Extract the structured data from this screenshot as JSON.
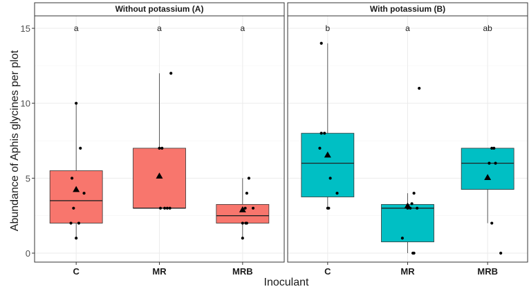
{
  "chart_data": {
    "type": "box",
    "ylabel": "Abundance of Aphis glycines per plot",
    "xlabel": "Inoculant",
    "ylim": [
      -0.5,
      15.8
    ],
    "yticks": [
      0,
      5,
      10,
      15
    ],
    "categories": [
      "C",
      "MR",
      "MRB"
    ],
    "grid": true,
    "legend": "none",
    "panels": [
      {
        "title": "Without potassium (A)",
        "fill": "#F8766D",
        "groups": [
          {
            "category": "C",
            "letter": "a",
            "q1": 2,
            "median": 3.5,
            "q3": 5.5,
            "whisker_low": 1,
            "whisker_high": 10,
            "mean": 4.25,
            "points": [
              [
                0.0,
                10
              ],
              [
                0.08,
                7
              ],
              [
                -0.08,
                5
              ],
              [
                0.15,
                4
              ],
              [
                -0.05,
                3
              ],
              [
                0.05,
                2
              ],
              [
                -0.1,
                2
              ],
              [
                0.0,
                1
              ]
            ]
          },
          {
            "category": "MR",
            "letter": "a",
            "q1": 3,
            "median": 3,
            "q3": 7,
            "whisker_low": 3,
            "whisker_high": 12,
            "mean": 5.15,
            "points": [
              [
                0.22,
                12
              ],
              [
                0.0,
                7
              ],
              [
                0.05,
                7
              ],
              [
                0.1,
                3
              ],
              [
                0.15,
                3
              ],
              [
                0.2,
                3
              ],
              [
                0.02,
                3
              ]
            ]
          },
          {
            "category": "MRB",
            "letter": "a",
            "q1": 2,
            "median": 2.5,
            "q3": 3.25,
            "whisker_low": 1,
            "whisker_high": 5,
            "mean": 2.9,
            "points": [
              [
                0.12,
                5
              ],
              [
                0.08,
                4
              ],
              [
                0.05,
                3
              ],
              [
                0.2,
                3
              ],
              [
                0.0,
                2
              ],
              [
                0.08,
                2
              ],
              [
                0.06,
                2
              ],
              [
                0.0,
                1
              ]
            ]
          }
        ]
      },
      {
        "title": "With potassium (B)",
        "fill": "#00BFC4",
        "groups": [
          {
            "category": "C",
            "letter": "b",
            "q1": 3.75,
            "median": 6,
            "q3": 8,
            "whisker_low": 3,
            "whisker_high": 14,
            "mean": 6.55,
            "points": [
              [
                -0.12,
                14
              ],
              [
                -0.12,
                8
              ],
              [
                -0.06,
                8
              ],
              [
                -0.15,
                7
              ],
              [
                0.05,
                5
              ],
              [
                0.18,
                4
              ],
              [
                0.0,
                3
              ],
              [
                0.02,
                3
              ]
            ]
          },
          {
            "category": "MR",
            "letter": "a",
            "q1": 0.75,
            "median": 3,
            "q3": 3.25,
            "whisker_low": 0,
            "whisker_high": 4,
            "mean": 3.15,
            "points": [
              [
                0.22,
                11
              ],
              [
                0.12,
                4
              ],
              [
                0.08,
                3.3
              ],
              [
                0.0,
                3
              ],
              [
                0.05,
                3
              ],
              [
                0.18,
                3
              ],
              [
                -0.1,
                1
              ],
              [
                0.1,
                0
              ],
              [
                0.12,
                0
              ]
            ]
          },
          {
            "category": "MRB",
            "letter": "ab",
            "q1": 4.25,
            "median": 6,
            "q3": 7,
            "whisker_low": 2,
            "whisker_high": 7,
            "mean": 5.05,
            "points": [
              [
                0.08,
                7
              ],
              [
                0.12,
                7
              ],
              [
                0.03,
                6
              ],
              [
                0.15,
                6
              ],
              [
                0.08,
                2
              ],
              [
                0.25,
                0
              ]
            ]
          }
        ]
      }
    ]
  }
}
